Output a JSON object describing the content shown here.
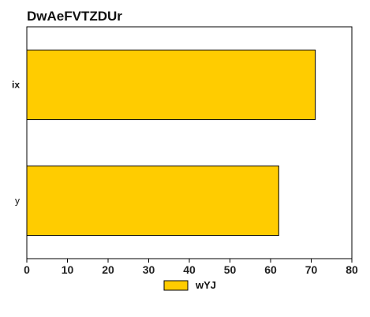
{
  "chart_data": {
    "type": "bar",
    "orientation": "horizontal",
    "title": "DwAeFVTZDUr",
    "categories": [
      "ix",
      "y"
    ],
    "series": [
      {
        "name": "wYJ",
        "values": [
          71,
          62
        ],
        "color": "#FFCC00"
      }
    ],
    "xlim": [
      0,
      80
    ],
    "x_ticks": [
      0,
      10,
      20,
      30,
      40,
      50,
      60,
      70,
      80
    ],
    "xlabel": "",
    "ylabel": "",
    "grid": false,
    "legend_position": "bottom-center",
    "bar_edge_color": "#000000"
  }
}
